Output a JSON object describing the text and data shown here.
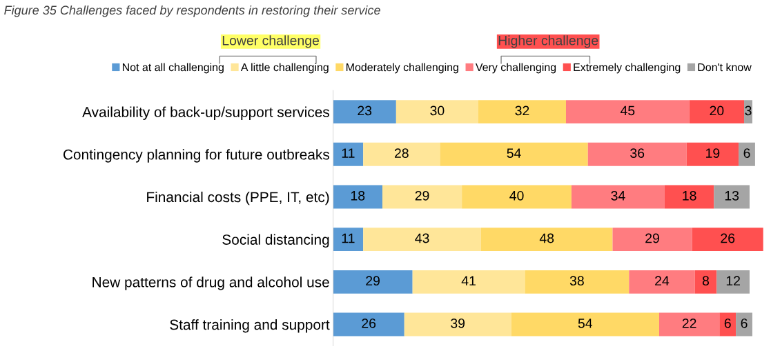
{
  "chart_data": {
    "type": "bar",
    "orientation": "horizontal",
    "stacked": true,
    "data_labels": true,
    "legend": "top",
    "grid": false,
    "tick_labels": "y",
    "title": "Figure 35 Challenges faced by respondents in restoring their service",
    "annotations": [
      "Lower challenge",
      "Higher challenge"
    ],
    "categories": [
      "Availability of back-up/support services",
      "Contingency planning for future outbreaks",
      "Financial costs (PPE, IT, etc)",
      "Social distancing",
      "New patterns of drug and alcohol use",
      "Staff training and support"
    ],
    "series": [
      {
        "name": "Not at all challenging",
        "color": "#5b9bd5",
        "values": [
          23,
          11,
          18,
          11,
          29,
          26
        ]
      },
      {
        "name": "A little challenging",
        "color": "#ffe699",
        "values": [
          30,
          28,
          29,
          43,
          41,
          39
        ]
      },
      {
        "name": "Moderately challenging",
        "color": "#ffd966",
        "values": [
          32,
          54,
          40,
          48,
          38,
          54
        ]
      },
      {
        "name": "Very challenging",
        "color": "#ff7c80",
        "values": [
          45,
          36,
          34,
          29,
          24,
          22
        ]
      },
      {
        "name": "Extremely challenging",
        "color": "#ff5050",
        "values": [
          20,
          19,
          18,
          26,
          8,
          6
        ]
      },
      {
        "name": "Don't know",
        "color": "#a5a5a5",
        "values": [
          3,
          6,
          13,
          null,
          12,
          6
        ]
      }
    ]
  }
}
